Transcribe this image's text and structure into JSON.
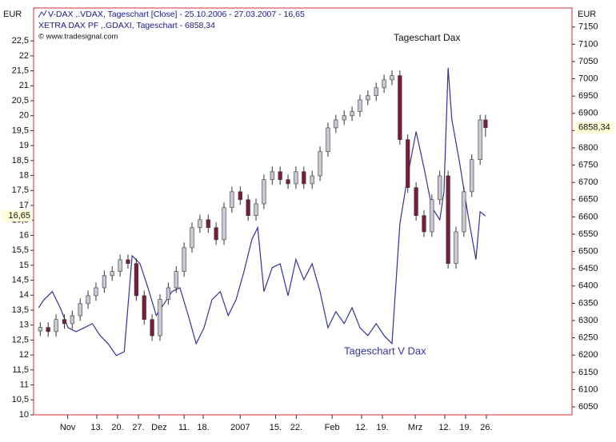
{
  "chart_data": {
    "type": "candlestick",
    "header": [
      "V-DAX ,.VDAX, Tageschart [Close] - 25.10.2006 - 27.03.2007 - 16,65",
      "XETRA DAX PF     ,.GDAXI, Tageschart - 6858,34",
      "© www.tradesignal.com"
    ],
    "y_unit": "EUR",
    "y2_unit": "EUR",
    "annotations": [
      "Tageschart Dax",
      "Tageschart V Dax"
    ],
    "xlim": [
      -1.2,
      128.3
    ],
    "xticks": [
      {
        "value": 7,
        "label": "Nov"
      },
      {
        "value": 14,
        "label": "13."
      },
      {
        "value": 19,
        "label": "20."
      },
      {
        "value": 24,
        "label": "27."
      },
      {
        "value": 29,
        "label": "Dez"
      },
      {
        "value": 35,
        "label": "11."
      },
      {
        "value": 39.6,
        "label": "18."
      },
      {
        "value": 48.5,
        "label": "2007"
      },
      {
        "value": 57,
        "label": "15."
      },
      {
        "value": 62,
        "label": "22."
      },
      {
        "value": 70.6,
        "label": "Feb"
      },
      {
        "value": 77.7,
        "label": "12."
      },
      {
        "value": 82.7,
        "label": "19."
      },
      {
        "value": 90.6,
        "label": "Mrz"
      },
      {
        "value": 97.7,
        "label": "12."
      },
      {
        "value": 102.7,
        "label": "19."
      },
      {
        "value": 107.7,
        "label": "26."
      }
    ],
    "ylim": [
      10,
      23.6
    ],
    "yticks": [
      {
        "value": 10,
        "label": "10"
      },
      {
        "value": 10.5,
        "label": "10,5"
      },
      {
        "value": 11,
        "label": "11"
      },
      {
        "value": 11.5,
        "label": "11,5"
      },
      {
        "value": 12,
        "label": "12"
      },
      {
        "value": 12.5,
        "label": "12,5"
      },
      {
        "value": 13,
        "label": "13"
      },
      {
        "value": 13.5,
        "label": "13,5"
      },
      {
        "value": 14,
        "label": "14"
      },
      {
        "value": 14.5,
        "label": "14,5"
      },
      {
        "value": 15,
        "label": "15"
      },
      {
        "value": 15.5,
        "label": "15,5"
      },
      {
        "value": 16,
        "label": "16"
      },
      {
        "value": 16.5,
        "label": "16,5"
      },
      {
        "value": 17,
        "label": "17"
      },
      {
        "value": 17.5,
        "label": "17,5"
      },
      {
        "value": 18,
        "label": "18"
      },
      {
        "value": 18.5,
        "label": "18,5"
      },
      {
        "value": 19,
        "label": "19"
      },
      {
        "value": 19.5,
        "label": "19,5"
      },
      {
        "value": 20,
        "label": "20"
      },
      {
        "value": 20.5,
        "label": "20,5"
      },
      {
        "value": 21,
        "label": "21"
      },
      {
        "value": 21.5,
        "label": "21,5"
      },
      {
        "value": 22,
        "label": "22"
      },
      {
        "value": 22.5,
        "label": "22,5"
      }
    ],
    "y2lim": [
      6027,
      7205
    ],
    "y2ticks": [
      6050,
      6100,
      6150,
      6200,
      6250,
      6300,
      6350,
      6400,
      6450,
      6500,
      6550,
      6600,
      6650,
      6700,
      6750,
      6800,
      6850,
      6900,
      6950,
      7000,
      7050,
      7100,
      7150
    ],
    "grid": false,
    "series": [
      {
        "name": "V-DAX",
        "type": "line",
        "axis": "y",
        "color": "#33339a",
        "x": [
          0,
          1.3,
          3.3,
          5.2,
          7.1,
          9,
          11,
          12.9,
          14.8,
          16.7,
          18.7,
          20.6,
          22.5,
          24.4,
          26.3,
          28.3,
          30.2,
          32.1,
          34,
          36,
          37.9,
          39.8,
          41.7,
          43.7,
          45.6,
          47.5,
          49.4,
          51.3,
          52.7,
          54.2,
          56.2,
          58.1,
          60,
          61.9,
          63.8,
          65.8,
          67.7,
          69.6,
          71.5,
          73.5,
          75.4,
          77.3,
          79.2,
          81.2,
          83.1,
          85,
          86.9,
          88.8,
          90.8,
          92.7,
          94.6,
          96.5,
          97.5,
          98.5,
          99.4,
          101.3,
          103.3,
          105.2,
          106.2,
          107.5
        ],
        "values": [
          13.58,
          13.85,
          14.12,
          13.58,
          12.91,
          12.78,
          12.91,
          13.05,
          12.65,
          12.38,
          11.98,
          12.11,
          15.32,
          15.05,
          14.25,
          13.32,
          13.72,
          14.12,
          14.25,
          13.32,
          12.38,
          12.91,
          13.85,
          14.12,
          13.32,
          13.85,
          14.79,
          15.86,
          16.26,
          14.12,
          14.92,
          15.05,
          13.98,
          15.19,
          14.52,
          15.05,
          14.12,
          12.91,
          13.45,
          13.05,
          13.58,
          12.91,
          12.65,
          13.05,
          12.65,
          12.38,
          16.39,
          18.0,
          19.47,
          18.26,
          16.93,
          16.52,
          17.46,
          21.6,
          19.87,
          18.4,
          16.66,
          15.19,
          16.79,
          16.65
        ],
        "last": {
          "value": 16.65,
          "label": "16,65"
        }
      },
      {
        "name": "XETRA DAX PF",
        "type": "candlestick",
        "axis": "y2",
        "up_color": "#c9c9d6",
        "down_color": "#7a1d3c",
        "edge_color": "#333",
        "x": [
          0.4,
          2.3,
          4.2,
          6.2,
          8.1,
          10,
          11.9,
          13.8,
          15.8,
          17.7,
          19.6,
          21.5,
          23.5,
          25.4,
          27.3,
          29.2,
          31.2,
          33.1,
          35,
          36.9,
          38.8,
          40.8,
          42.7,
          44.6,
          46.5,
          48.5,
          50.4,
          52.3,
          54.2,
          56.2,
          58.1,
          60,
          61.9,
          63.8,
          65.8,
          67.7,
          69.6,
          71.5,
          73.5,
          75.4,
          77.3,
          79.2,
          81.2,
          83.1,
          85,
          86.9,
          88.8,
          90.8,
          92.7,
          94.6,
          96.5,
          98.5,
          100.4,
          102.3,
          104.2,
          106.2,
          107.5
        ],
        "open": [
          6270,
          6280,
          6268,
          6303,
          6291,
          6314,
          6349,
          6372,
          6395,
          6430,
          6442,
          6476,
          6465,
          6372,
          6303,
          6256,
          6361,
          6395,
          6442,
          6511,
          6569,
          6592,
          6569,
          6534,
          6627,
          6673,
          6650,
          6604,
          6638,
          6708,
          6731,
          6708,
          6696,
          6731,
          6696,
          6719,
          6789,
          6858,
          6881,
          6893,
          6905,
          6939,
          6951,
          6974,
          6997,
          7009,
          6824,
          6685,
          6604,
          6557,
          6650,
          6719,
          6465,
          6557,
          6673,
          6766,
          6881
        ],
        "high": [
          6295,
          6295,
          6318,
          6318,
          6329,
          6364,
          6387,
          6410,
          6445,
          6457,
          6491,
          6491,
          6480,
          6387,
          6318,
          6376,
          6410,
          6457,
          6526,
          6584,
          6607,
          6607,
          6584,
          6642,
          6688,
          6688,
          6665,
          6653,
          6723,
          6746,
          6746,
          6723,
          6746,
          6746,
          6734,
          6804,
          6873,
          6896,
          6908,
          6920,
          6954,
          6966,
          6989,
          7012,
          7024,
          7024,
          6839,
          6700,
          6619,
          6665,
          6734,
          6734,
          6572,
          6688,
          6781,
          6896,
          6896
        ],
        "low": [
          6255,
          6253,
          6253,
          6276,
          6276,
          6299,
          6334,
          6357,
          6380,
          6415,
          6427,
          6450,
          6357,
          6288,
          6241,
          6241,
          6346,
          6380,
          6427,
          6496,
          6554,
          6554,
          6519,
          6519,
          6612,
          6635,
          6589,
          6589,
          6623,
          6693,
          6693,
          6681,
          6681,
          6681,
          6681,
          6704,
          6774,
          6843,
          6866,
          6878,
          6890,
          6924,
          6936,
          6959,
          6982,
          6809,
          6670,
          6589,
          6542,
          6542,
          6635,
          6450,
          6450,
          6542,
          6658,
          6751,
          6832
        ],
        "close": [
          6280,
          6268,
          6303,
          6291,
          6314,
          6349,
          6372,
          6395,
          6430,
          6442,
          6476,
          6465,
          6372,
          6303,
          6256,
          6361,
          6395,
          6442,
          6511,
          6569,
          6592,
          6569,
          6534,
          6627,
          6673,
          6650,
          6604,
          6638,
          6708,
          6731,
          6708,
          6696,
          6731,
          6696,
          6719,
          6789,
          6858,
          6881,
          6893,
          6905,
          6939,
          6951,
          6974,
          6997,
          7009,
          6824,
          6685,
          6604,
          6557,
          6650,
          6719,
          6465,
          6557,
          6673,
          6766,
          6881,
          6858.34
        ],
        "last": {
          "value": 6858.34,
          "label": "6858,34"
        }
      }
    ]
  }
}
